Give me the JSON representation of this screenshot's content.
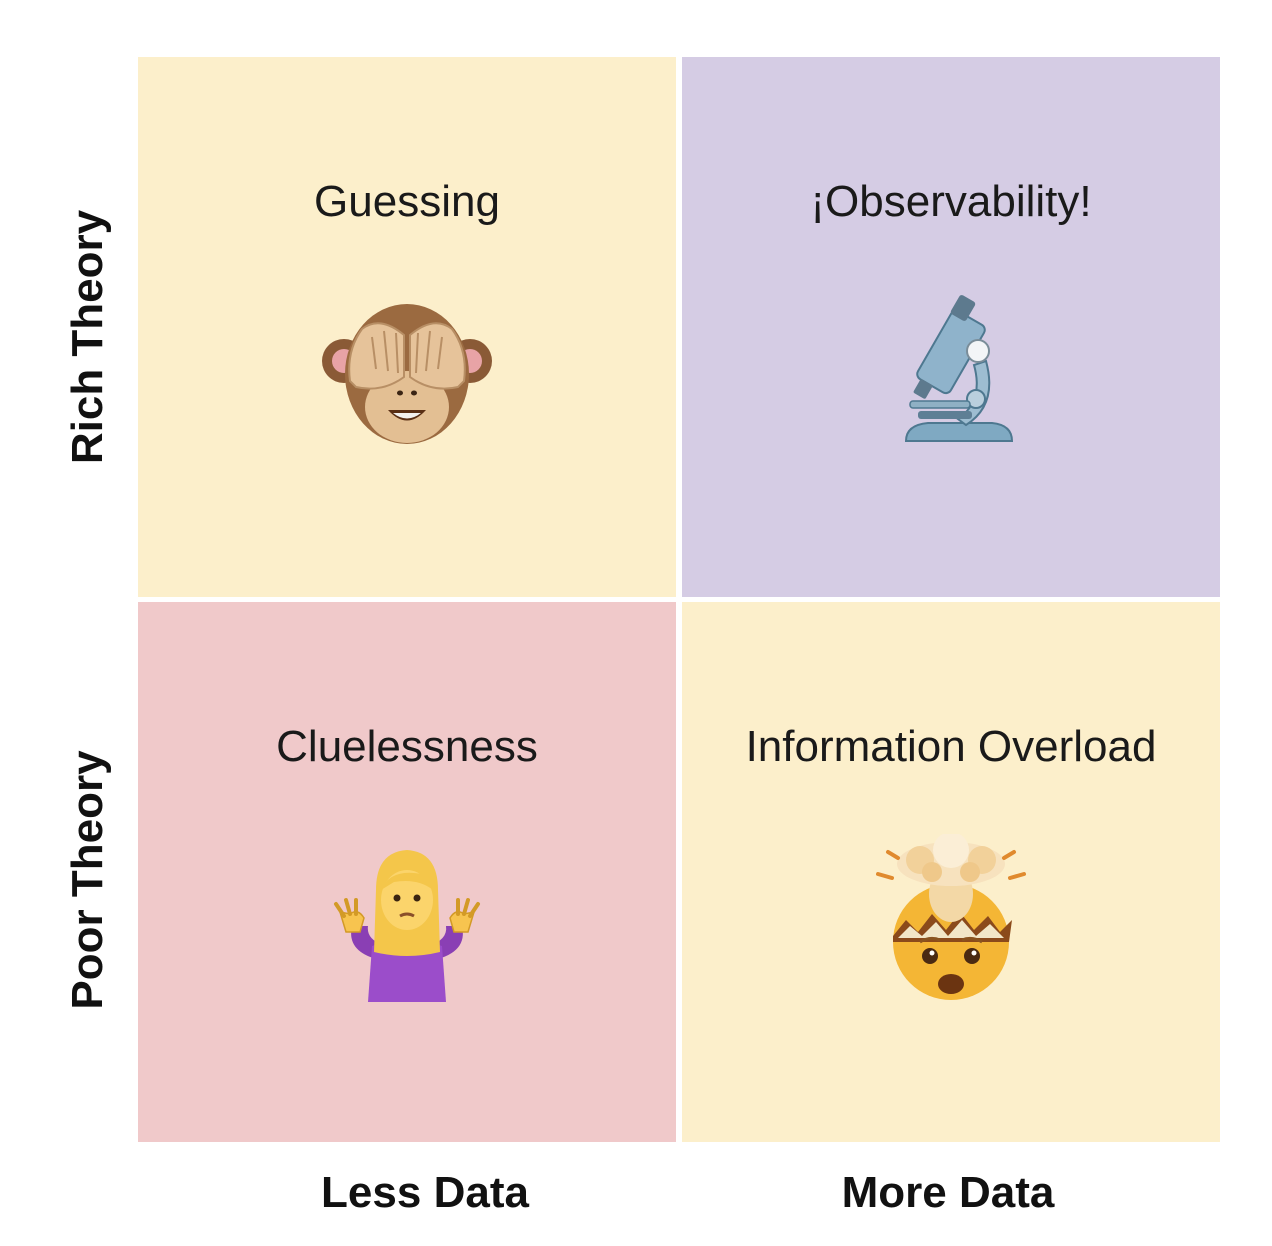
{
  "axes": {
    "y_top": "Rich Theory",
    "y_bottom": "Poor Theory",
    "x_left": "Less Data",
    "x_right": "More Data"
  },
  "quadrants": [
    {
      "label": "Guessing",
      "icon": "see-no-evil-monkey-icon",
      "color": "#fcefcb"
    },
    {
      "label": "¡Observability!",
      "icon": "microscope-icon",
      "color": "#d5cce4"
    },
    {
      "label": "Cluelessness",
      "icon": "person-shrugging-icon",
      "color": "#f0c9ca"
    },
    {
      "label": "Information Overload",
      "icon": "exploding-head-icon",
      "color": "#fcefcb"
    }
  ]
}
